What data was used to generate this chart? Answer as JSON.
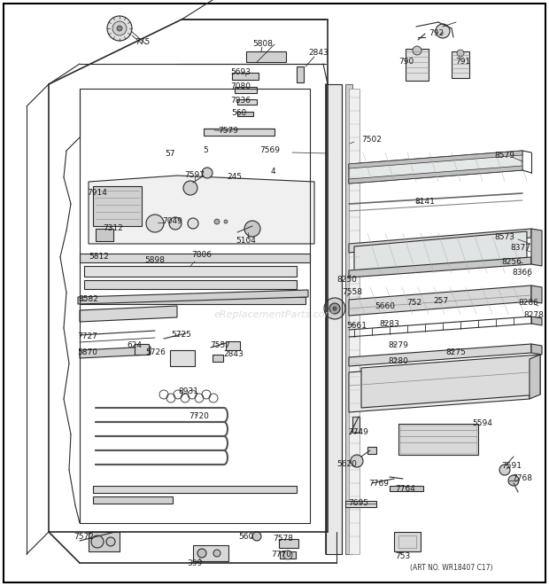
{
  "bg_color": "#ffffff",
  "line_color": "#2a2a2a",
  "label_color": "#1a1a1a",
  "art_no": "(ART NO. WR18407 C17)",
  "watermark": "eReplacementParts.com",
  "figsize": [
    6.2,
    6.61
  ],
  "dpi": 100
}
